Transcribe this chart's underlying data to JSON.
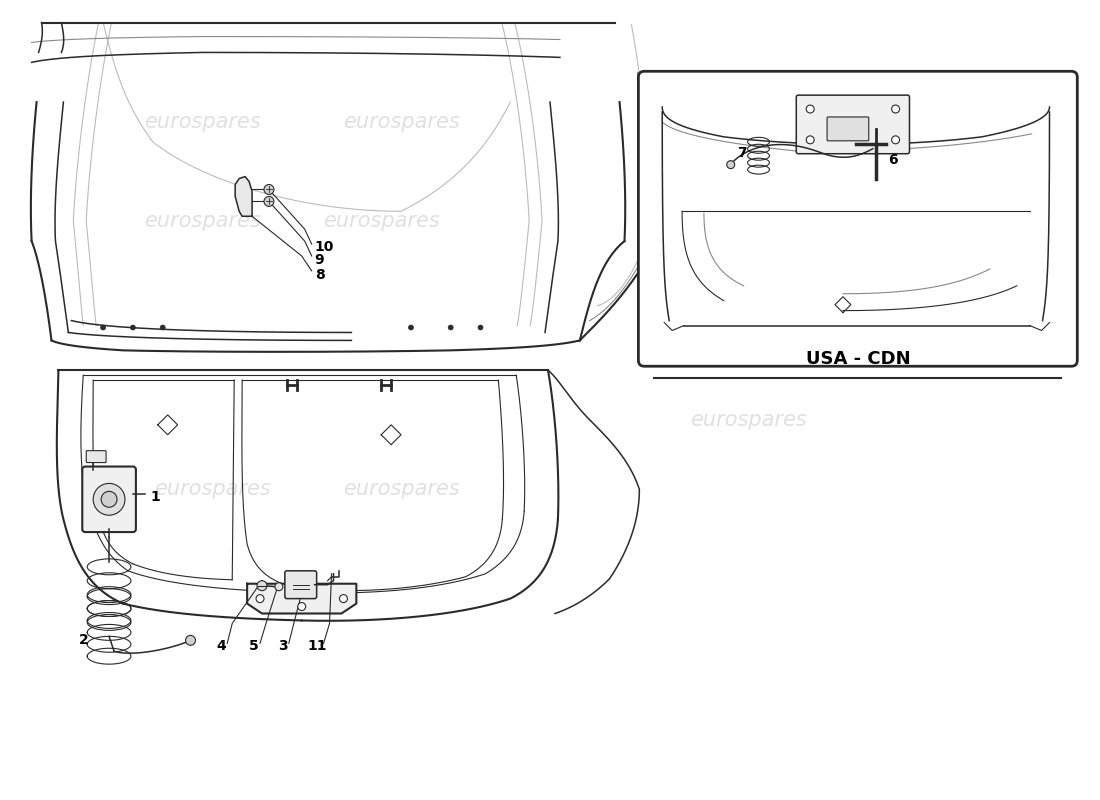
{
  "background_color": "#ffffff",
  "line_color": "#2a2a2a",
  "line_color_mid": "#888888",
  "line_color_light": "#bbbbbb",
  "watermark_color": "#cccccc",
  "watermark_text": "eurospares",
  "inset_box_color": "#2a2a2a",
  "usa_cdn_label": "USA - CDN",
  "fig_width": 11.0,
  "fig_height": 8.0,
  "dpi": 100
}
